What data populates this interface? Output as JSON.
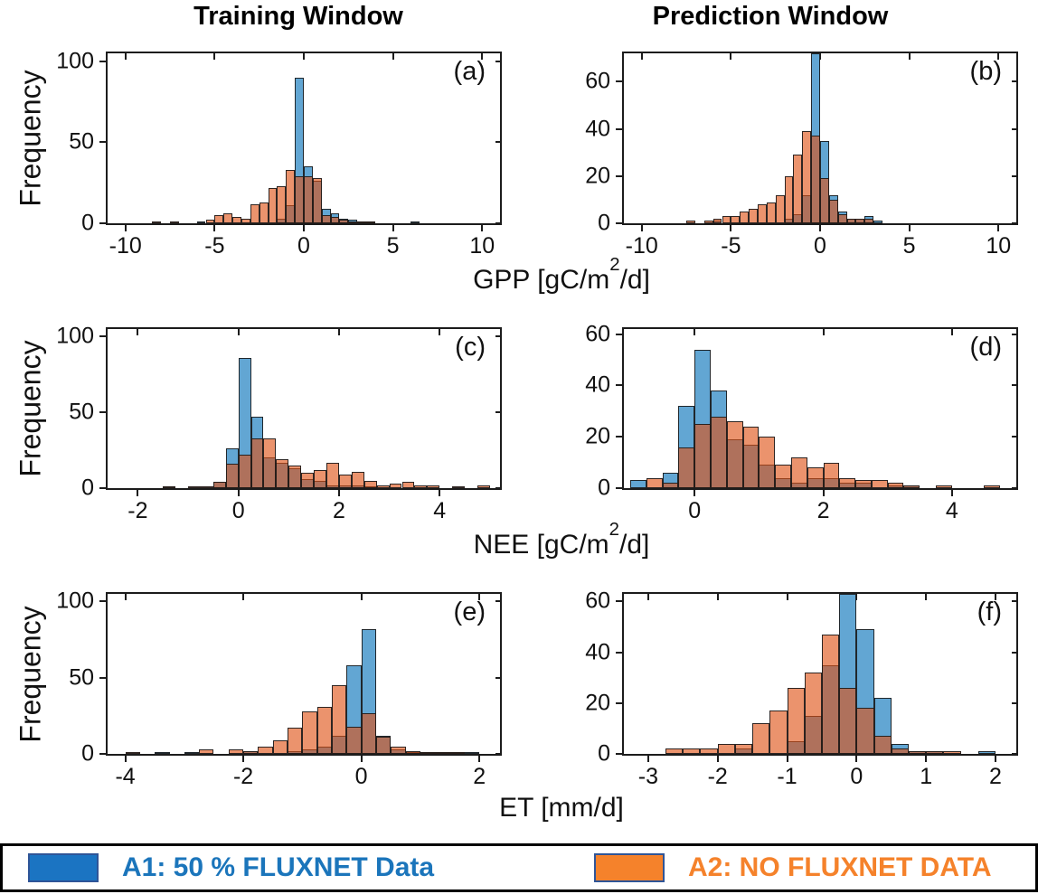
{
  "figure": {
    "column_titles": [
      "Training Window",
      "Prediction Window"
    ],
    "ylabel": "Frequency",
    "row_captions": [
      {
        "pre": "GPP [gC/m",
        "sup": "2",
        "post": "/d]"
      },
      {
        "pre": "NEE [gC/m",
        "sup": "2",
        "post": "/d]"
      },
      {
        "pre": "ET [mm/d]",
        "sup": "",
        "post": ""
      }
    ]
  },
  "legend": {
    "items": [
      {
        "label": "A1: 50 % FLUXNET Data",
        "swatch_color": "#1B74C2",
        "text_color": "#1B75BB",
        "border_color": "#2F5597"
      },
      {
        "label": "A2: NO FLUXNET DATA",
        "swatch_color": "#F5822B",
        "text_color": "#F5822B",
        "border_color": "#2F5597"
      }
    ]
  },
  "chart_data": {
    "type": "bar",
    "subtype": "overlaid-histogram-grid",
    "series_names": [
      "A1: 50 % FLUXNET Data",
      "A2: NO FLUXNET DATA"
    ],
    "colors": {
      "a1_fill": "#62A6D3",
      "a2_fill": "rgba(222,80,20,0.62)",
      "overlap_appearance": "#A77263",
      "edge": "#1a1a1a"
    },
    "ylabel": "Frequency",
    "panels": [
      {
        "id": "a",
        "label": "(a)",
        "window": "Training Window",
        "variable": "GPP [gC/m2/d]",
        "xlim": [
          -11,
          11
        ],
        "xticks": [
          -10,
          -5,
          0,
          5,
          10
        ],
        "ylim": [
          0,
          105
        ],
        "yticks": [
          0,
          50,
          100
        ],
        "bin_width": 0.5,
        "a1": [
          [
            -6.0,
            1
          ],
          [
            -1.5,
            3
          ],
          [
            -1.0,
            11
          ],
          [
            -0.5,
            90
          ],
          [
            0.0,
            35
          ],
          [
            0.5,
            26
          ],
          [
            1.0,
            9
          ],
          [
            1.5,
            6
          ],
          [
            2.0,
            3
          ],
          [
            2.5,
            2
          ],
          [
            3.0,
            1
          ],
          [
            3.5,
            1
          ],
          [
            6.0,
            1
          ]
        ],
        "a2": [
          [
            -8.5,
            1
          ],
          [
            -7.5,
            1
          ],
          [
            -5.5,
            2
          ],
          [
            -5.0,
            5
          ],
          [
            -4.5,
            6
          ],
          [
            -4.0,
            4
          ],
          [
            -3.5,
            3
          ],
          [
            -3.0,
            12
          ],
          [
            -2.5,
            13
          ],
          [
            -2.0,
            22
          ],
          [
            -1.5,
            23
          ],
          [
            -1.0,
            33
          ],
          [
            -0.5,
            29
          ],
          [
            0.0,
            29
          ],
          [
            0.5,
            28
          ],
          [
            1.0,
            5
          ],
          [
            1.5,
            4
          ],
          [
            2.0,
            2
          ],
          [
            2.5,
            1
          ],
          [
            3.0,
            1
          ],
          [
            3.5,
            1
          ]
        ]
      },
      {
        "id": "b",
        "label": "(b)",
        "window": "Prediction Window",
        "variable": "GPP [gC/m2/d]",
        "xlim": [
          -11,
          11
        ],
        "xticks": [
          -10,
          -5,
          0,
          5,
          10
        ],
        "ylim": [
          0,
          72
        ],
        "yticks": [
          0,
          20,
          40,
          60
        ],
        "bin_width": 0.5,
        "a1": [
          [
            -6.0,
            1
          ],
          [
            -2.0,
            2
          ],
          [
            -1.5,
            4
          ],
          [
            -1.0,
            12
          ],
          [
            -0.5,
            73
          ],
          [
            0.0,
            35
          ],
          [
            0.5,
            12
          ],
          [
            1.0,
            5
          ],
          [
            1.5,
            2
          ],
          [
            2.0,
            2
          ],
          [
            2.5,
            3
          ],
          [
            3.0,
            1
          ]
        ],
        "a2": [
          [
            -7.5,
            1
          ],
          [
            -6.5,
            1
          ],
          [
            -6.0,
            2
          ],
          [
            -5.5,
            3
          ],
          [
            -5.0,
            3
          ],
          [
            -4.5,
            5
          ],
          [
            -4.0,
            6
          ],
          [
            -3.5,
            8
          ],
          [
            -3.0,
            9
          ],
          [
            -2.5,
            12
          ],
          [
            -2.0,
            20
          ],
          [
            -1.5,
            29
          ],
          [
            -1.0,
            39
          ],
          [
            -0.5,
            37
          ],
          [
            0.0,
            19
          ],
          [
            0.5,
            10
          ],
          [
            1.0,
            4
          ],
          [
            1.5,
            2
          ],
          [
            2.0,
            2
          ],
          [
            2.5,
            2
          ]
        ]
      },
      {
        "id": "c",
        "label": "(c)",
        "window": "Training Window",
        "variable": "NEE [gC/m2/d]",
        "xlim": [
          -2.6,
          5.2
        ],
        "xticks": [
          -2,
          0,
          2,
          4
        ],
        "ylim": [
          0,
          105
        ],
        "yticks": [
          0,
          50,
          100
        ],
        "bin_width": 0.25,
        "a1": [
          [
            -1.5,
            1
          ],
          [
            -0.5,
            4
          ],
          [
            -0.25,
            26
          ],
          [
            0.0,
            86
          ],
          [
            0.25,
            47
          ],
          [
            0.5,
            20
          ],
          [
            0.75,
            17
          ],
          [
            1.0,
            13
          ],
          [
            1.25,
            6
          ],
          [
            1.5,
            5
          ],
          [
            1.75,
            2
          ],
          [
            2.0,
            2
          ],
          [
            2.25,
            2
          ],
          [
            2.5,
            1
          ]
        ],
        "a2": [
          [
            -1.5,
            1
          ],
          [
            -1.0,
            1
          ],
          [
            -0.75,
            1
          ],
          [
            -0.5,
            4
          ],
          [
            -0.25,
            16
          ],
          [
            0.0,
            22
          ],
          [
            0.25,
            33
          ],
          [
            0.5,
            33
          ],
          [
            0.75,
            19
          ],
          [
            1.0,
            15
          ],
          [
            1.25,
            10
          ],
          [
            1.5,
            12
          ],
          [
            1.75,
            17
          ],
          [
            2.0,
            9
          ],
          [
            2.25,
            11
          ],
          [
            2.5,
            5
          ],
          [
            2.75,
            2
          ],
          [
            3.0,
            3
          ],
          [
            3.25,
            4
          ],
          [
            3.5,
            2
          ],
          [
            3.75,
            2
          ],
          [
            4.25,
            1
          ],
          [
            4.75,
            2
          ]
        ]
      },
      {
        "id": "d",
        "label": "(d)",
        "window": "Prediction Window",
        "variable": "NEE [gC/m2/d]",
        "xlim": [
          -1.1,
          5.0
        ],
        "xticks": [
          0,
          2,
          4
        ],
        "ylim": [
          0,
          62
        ],
        "yticks": [
          0,
          20,
          40,
          60
        ],
        "bin_width": 0.25,
        "a1": [
          [
            -1.0,
            3
          ],
          [
            -0.5,
            6
          ],
          [
            -0.25,
            32
          ],
          [
            0.0,
            54
          ],
          [
            0.25,
            38
          ],
          [
            0.5,
            19
          ],
          [
            0.75,
            17
          ],
          [
            1.0,
            9
          ],
          [
            1.25,
            4
          ],
          [
            1.5,
            2
          ],
          [
            1.75,
            4
          ],
          [
            2.0,
            4
          ],
          [
            2.25,
            2
          ],
          [
            2.5,
            2
          ],
          [
            3.0,
            1
          ],
          [
            3.25,
            1
          ]
        ],
        "a2": [
          [
            -0.75,
            4
          ],
          [
            -0.5,
            2
          ],
          [
            -0.25,
            16
          ],
          [
            0.0,
            25
          ],
          [
            0.25,
            28
          ],
          [
            0.5,
            26
          ],
          [
            0.75,
            24
          ],
          [
            1.0,
            20
          ],
          [
            1.25,
            9
          ],
          [
            1.5,
            12
          ],
          [
            1.75,
            8
          ],
          [
            2.0,
            10
          ],
          [
            2.25,
            4
          ],
          [
            2.5,
            3
          ],
          [
            2.75,
            3
          ],
          [
            3.0,
            2
          ],
          [
            3.25,
            1
          ],
          [
            3.75,
            1
          ],
          [
            4.5,
            1
          ]
        ]
      },
      {
        "id": "e",
        "label": "(e)",
        "window": "Training Window",
        "variable": "ET [mm/d]",
        "xlim": [
          -4.3,
          2.35
        ],
        "xticks": [
          -4,
          -2,
          0,
          2
        ],
        "ylim": [
          0,
          105
        ],
        "yticks": [
          0,
          50,
          100
        ],
        "bin_width": 0.25,
        "a1": [
          [
            -3.5,
            1
          ],
          [
            -3.0,
            1
          ],
          [
            -2.0,
            2
          ],
          [
            -1.25,
            2
          ],
          [
            -1.0,
            3
          ],
          [
            -0.75,
            5
          ],
          [
            -0.5,
            12
          ],
          [
            -0.25,
            58
          ],
          [
            0.0,
            82
          ],
          [
            0.25,
            12
          ],
          [
            0.5,
            3
          ],
          [
            0.75,
            1
          ],
          [
            1.0,
            1
          ],
          [
            1.25,
            1
          ],
          [
            1.5,
            1
          ],
          [
            1.75,
            1
          ]
        ],
        "a2": [
          [
            -4.0,
            1
          ],
          [
            -2.75,
            3
          ],
          [
            -2.25,
            3
          ],
          [
            -2.0,
            2
          ],
          [
            -1.75,
            5
          ],
          [
            -1.5,
            9
          ],
          [
            -1.25,
            17
          ],
          [
            -1.0,
            28
          ],
          [
            -0.75,
            31
          ],
          [
            -0.5,
            45
          ],
          [
            -0.25,
            18
          ],
          [
            0.0,
            27
          ],
          [
            0.25,
            11
          ],
          [
            0.5,
            5
          ],
          [
            0.75,
            2
          ],
          [
            1.0,
            1
          ],
          [
            1.25,
            1
          ],
          [
            1.5,
            1
          ]
        ]
      },
      {
        "id": "f",
        "label": "(f)",
        "window": "Prediction Window",
        "variable": "ET [mm/d]",
        "xlim": [
          -3.35,
          2.3
        ],
        "xticks": [
          -3,
          -2,
          -1,
          0,
          1,
          2
        ],
        "ylim": [
          0,
          63
        ],
        "yticks": [
          0,
          20,
          40,
          60
        ],
        "bin_width": 0.25,
        "a1": [
          [
            -1.75,
            2
          ],
          [
            -1.0,
            5
          ],
          [
            -0.75,
            15
          ],
          [
            -0.5,
            35
          ],
          [
            -0.25,
            66
          ],
          [
            0.0,
            49
          ],
          [
            0.25,
            22
          ],
          [
            0.5,
            4
          ],
          [
            0.75,
            1
          ],
          [
            1.0,
            1
          ],
          [
            1.75,
            1
          ]
        ],
        "a2": [
          [
            -2.75,
            2
          ],
          [
            -2.5,
            2
          ],
          [
            -2.25,
            2
          ],
          [
            -2.0,
            4
          ],
          [
            -1.75,
            4
          ],
          [
            -1.5,
            12
          ],
          [
            -1.25,
            17
          ],
          [
            -1.0,
            26
          ],
          [
            -0.75,
            32
          ],
          [
            -0.5,
            47
          ],
          [
            -0.25,
            26
          ],
          [
            0.0,
            18
          ],
          [
            0.25,
            7
          ],
          [
            0.5,
            2
          ],
          [
            0.75,
            1
          ],
          [
            1.0,
            1
          ],
          [
            1.25,
            1
          ]
        ]
      }
    ]
  }
}
